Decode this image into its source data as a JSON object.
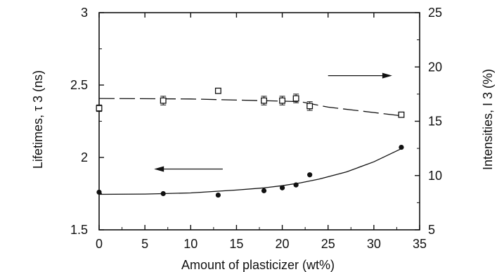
{
  "chart_data": {
    "type": "scatter",
    "xlabel": "Amount of plasticizer (wt%)",
    "ylabel_left": "Lifetimes, τ 3 (ns)",
    "ylabel_right": "Intensities, I 3 (%)",
    "xlim": [
      0,
      35
    ],
    "ylim_left": [
      1.5,
      3
    ],
    "ylim_right": [
      5,
      25
    ],
    "x_ticks": [
      "0",
      "5",
      "10",
      "15",
      "20",
      "25",
      "30",
      "35"
    ],
    "y_ticks_left": [
      "1.5",
      "2",
      "2.5",
      "3"
    ],
    "y_ticks_right": [
      "5",
      "10",
      "15",
      "20",
      "25"
    ],
    "grid": false,
    "series": [
      {
        "axis": "left",
        "marker": "filled-circle",
        "line_style": "solid",
        "x": [
          0,
          7,
          13,
          18,
          20,
          21.5,
          23,
          33
        ],
        "y": [
          1.76,
          1.75,
          1.74,
          1.77,
          1.79,
          1.81,
          1.88,
          2.07
        ],
        "fit_x": [
          0,
          5,
          10,
          15,
          18,
          20,
          22,
          24,
          27,
          30,
          33
        ],
        "fit_y": [
          1.745,
          1.747,
          1.755,
          1.775,
          1.79,
          1.805,
          1.825,
          1.85,
          1.9,
          1.97,
          2.06
        ]
      },
      {
        "axis": "right",
        "marker": "open-square",
        "line_style": "dashed",
        "x": [
          0,
          7,
          13,
          18,
          20,
          21.5,
          23,
          33
        ],
        "y": [
          16.2,
          16.9,
          17.8,
          16.9,
          16.9,
          17.1,
          16.4,
          15.6
        ],
        "error": [
          0.3,
          0.4,
          0.2,
          0.4,
          0.4,
          0.4,
          0.4,
          0.2
        ],
        "fit_x": [
          0,
          10,
          20,
          22,
          25,
          30,
          33
        ],
        "fit_y": [
          17.1,
          17.05,
          16.85,
          16.8,
          16.3,
          15.8,
          15.5
        ]
      }
    ],
    "annotations": [
      {
        "direction": "left",
        "x_from": 13.5,
        "x_to": 6,
        "y_left": 1.92
      },
      {
        "direction": "right",
        "x_from": 25,
        "x_to": 32,
        "y_right": 19.2
      }
    ]
  }
}
